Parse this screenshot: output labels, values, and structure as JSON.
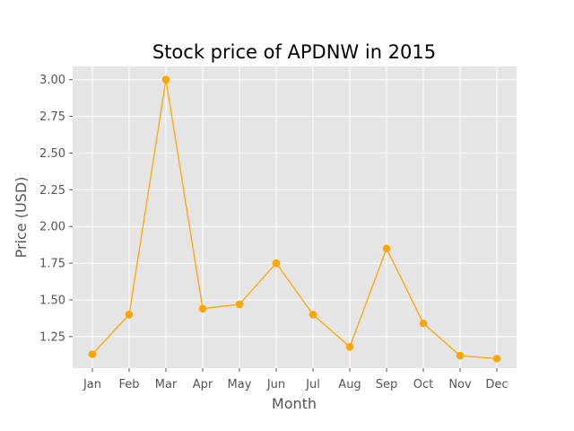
{
  "chart_data": {
    "type": "line",
    "title": "Stock price of APDNW in 2015",
    "xlabel": "Month",
    "ylabel": "Price (USD)",
    "categories": [
      "Jan",
      "Feb",
      "Mar",
      "Apr",
      "May",
      "Jun",
      "Jul",
      "Aug",
      "Sep",
      "Oct",
      "Nov",
      "Dec"
    ],
    "series": [
      {
        "values": [
          1.13,
          1.4,
          3.0,
          1.44,
          1.47,
          1.75,
          1.4,
          1.18,
          1.85,
          1.34,
          1.12,
          1.1
        ]
      }
    ],
    "ylim": [
      1.035,
      3.09
    ],
    "yticks": [
      1.25,
      1.5,
      1.75,
      2.0,
      2.25,
      2.5,
      2.75,
      3.0
    ],
    "ytick_labels": [
      "1.25",
      "1.50",
      "1.75",
      "2.00",
      "2.25",
      "2.50",
      "2.75",
      "3.00"
    ],
    "grid": true,
    "style": "ggplot",
    "colors": {
      "line": "#FFA500",
      "panel_background": "#E5E5E5",
      "grid": "#FFFFFF",
      "text": "#555555"
    }
  }
}
